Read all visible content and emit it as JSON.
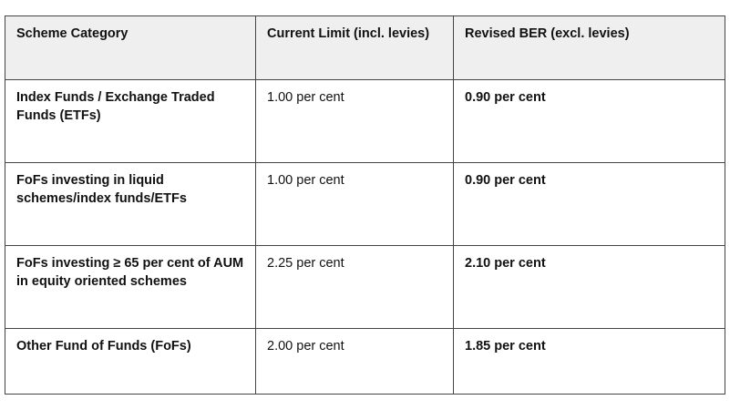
{
  "table": {
    "headers": [
      "Scheme Category",
      "Current Limit (incl. levies)",
      "Revised BER (excl. levies)"
    ],
    "rows": [
      {
        "category": "Index Funds / Exchange Traded Funds (ETFs)",
        "current": "1.00 per cent",
        "revised": "0.90 per cent"
      },
      {
        "category": "FoFs investing in liquid schemes/index funds/ETFs",
        "current": "1.00 per cent",
        "revised": "0.90 per cent"
      },
      {
        "category": "FoFs investing ≥ 65 per cent of AUM in equity oriented schemes",
        "current": "2.25 per cent",
        "revised": "2.10 per cent"
      },
      {
        "category": "Other Fund of Funds (FoFs)",
        "current": "2.00 per cent",
        "revised": "1.85 per cent"
      }
    ]
  }
}
